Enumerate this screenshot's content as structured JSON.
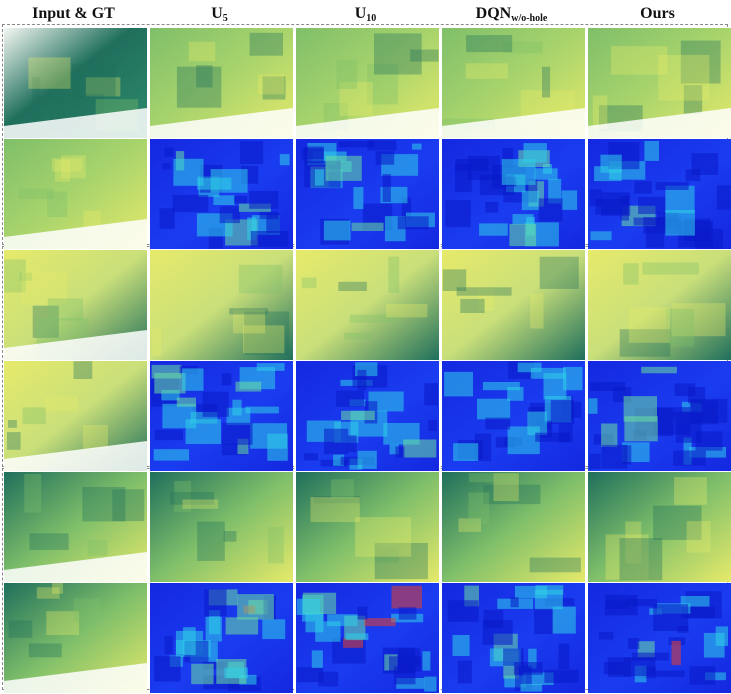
{
  "figure": {
    "columns": [
      {
        "label": "Input & GT",
        "base": "",
        "sub": ""
      },
      {
        "label": "U5",
        "base": "U",
        "sub": "5"
      },
      {
        "label": "U10",
        "base": "U",
        "sub": "10"
      },
      {
        "label": "DQNw/o-hole",
        "base": "DQN",
        "sub": "w/o-hole"
      },
      {
        "label": "Ours",
        "base": "Ours",
        "sub": ""
      }
    ],
    "scenes": 3,
    "rows_per_scene": [
      "depth map",
      "error map"
    ],
    "colors": {
      "depth_low": "#1f6f5c",
      "depth_mid": "#7fbf6a",
      "depth_high": "#e6ea6a",
      "error_low": "#1428e0",
      "error_mid": "#2fd0e8",
      "error_high": "#e8402a",
      "border": "#8a8a8a"
    }
  }
}
